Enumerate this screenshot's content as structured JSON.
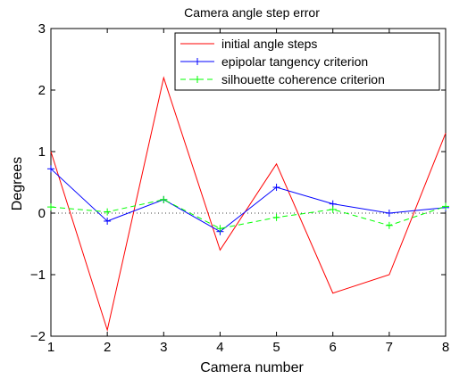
{
  "chart_data": {
    "type": "line",
    "title": "Camera angle step error",
    "xlabel": "Camera number",
    "ylabel": "Degrees",
    "xlim": [
      1,
      8
    ],
    "ylim": [
      -2,
      3
    ],
    "x_ticks": [
      1,
      2,
      3,
      4,
      5,
      6,
      7,
      8
    ],
    "x_tick_labels": [
      "1",
      "2",
      "3",
      "4",
      "5",
      "6",
      "7",
      "8"
    ],
    "y_ticks": [
      -2,
      -1,
      0,
      1,
      2,
      3
    ],
    "y_tick_labels": [
      "−2",
      "−1",
      "0",
      "1",
      "2",
      "3"
    ],
    "grid": false,
    "zero_line": true,
    "legend_position": "top-right",
    "x": [
      1,
      2,
      3,
      4,
      5,
      6,
      7,
      8
    ],
    "series": [
      {
        "name": "initial angle steps",
        "values": [
          1.0,
          -1.9,
          2.2,
          -0.6,
          0.8,
          -1.3,
          -1.0,
          1.3
        ],
        "color": "#ff0000",
        "style": "solid",
        "marker": "none"
      },
      {
        "name": "epipolar tangency criterion",
        "values": [
          0.72,
          -0.13,
          0.22,
          -0.3,
          0.42,
          0.15,
          0.0,
          0.09
        ],
        "color": "#0000ff",
        "style": "solid",
        "marker": "plus"
      },
      {
        "name": "silhouette coherence criterion",
        "values": [
          0.1,
          0.02,
          0.22,
          -0.25,
          -0.07,
          0.06,
          -0.2,
          0.11
        ],
        "color": "#00ff00",
        "style": "dashed",
        "marker": "plus"
      }
    ]
  }
}
